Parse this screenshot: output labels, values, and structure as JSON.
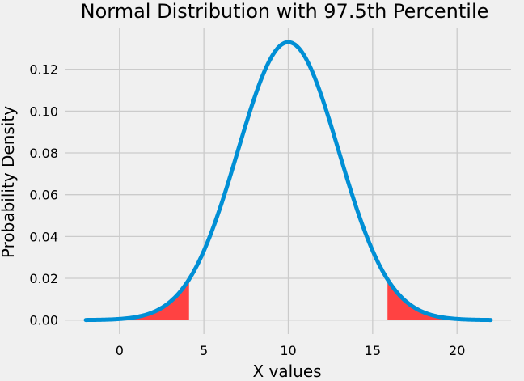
{
  "chart_data": {
    "type": "line",
    "title": "Normal Distribution with 97.5th Percentile",
    "xlabel": "X values",
    "ylabel": "Probability Density",
    "xlim": [
      -3.2,
      23.2
    ],
    "ylim": [
      -0.0067,
      0.14
    ],
    "xticks": [
      0,
      5,
      10,
      15,
      20
    ],
    "yticks": [
      0.0,
      0.02,
      0.04,
      0.06,
      0.08,
      0.1,
      0.12
    ],
    "ytick_labels": [
      "0.00",
      "0.02",
      "0.04",
      "0.06",
      "0.08",
      "0.10",
      "0.12"
    ],
    "grid": true,
    "distribution": {
      "mean": 10,
      "std": 3
    },
    "x_range": [
      -2,
      22
    ],
    "series": [
      {
        "color": "#008fd5",
        "kind": "curve"
      }
    ],
    "shaded_tails": {
      "color": "#ff4242",
      "lower": {
        "from": 0,
        "to": 4.12
      },
      "upper": {
        "from": 15.88,
        "to": 20
      }
    }
  }
}
